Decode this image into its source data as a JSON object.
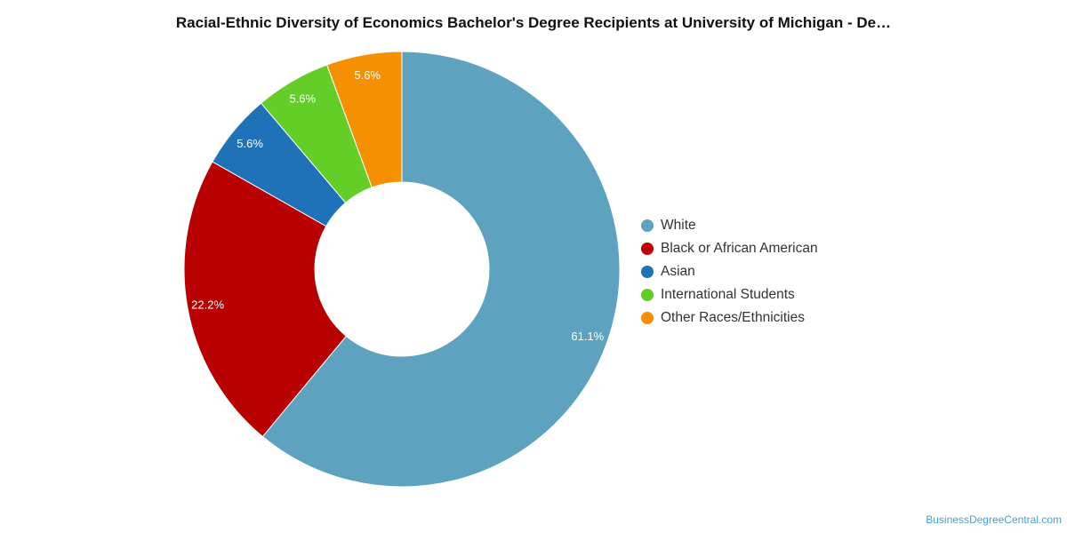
{
  "chart_data": {
    "type": "pie",
    "title": "Racial-Ethnic Diversity of Economics Bachelor's Degree Recipients at University of Michigan - De…",
    "slices": [
      {
        "label": "White",
        "value": 61.1,
        "display": "61.1%",
        "color": "#5da2bf"
      },
      {
        "label": "Black or African American",
        "value": 22.2,
        "display": "22.2%",
        "color": "#b80000"
      },
      {
        "label": "Asian",
        "value": 5.6,
        "display": "5.6%",
        "color": "#1f72b8"
      },
      {
        "label": "International Students",
        "value": 5.6,
        "display": "5.6%",
        "color": "#62ce27"
      },
      {
        "label": "Other Races/Ethnicities",
        "value": 5.6,
        "display": "5.6%",
        "color": "#f59100"
      }
    ],
    "legend_position": "right"
  },
  "credit": "BusinessDegreeCentral.com"
}
